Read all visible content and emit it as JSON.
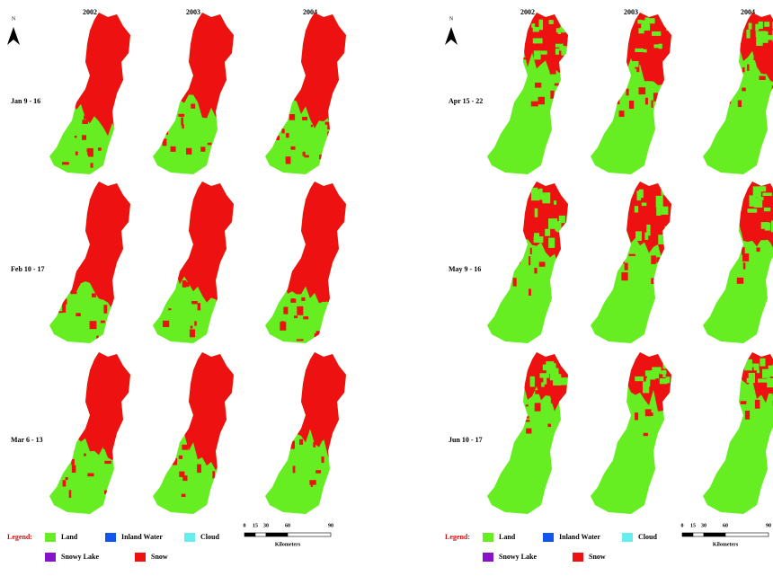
{
  "panels": [
    {
      "north": "N",
      "years": [
        "2002",
        "2003",
        "2004"
      ],
      "rows": [
        "Jan 9 - 16",
        "Feb 10 - 17",
        "Mar 6 - 13"
      ],
      "legend": {
        "title": "Legend:",
        "items": [
          "Land",
          "Inland Water",
          "Cloud",
          "Snowy Lake",
          "Snow"
        ]
      },
      "scale": {
        "ticks": [
          "0",
          "15",
          "30",
          "60",
          "90"
        ],
        "unit": "Kilometers"
      }
    },
    {
      "north": "N",
      "years": [
        "2002",
        "2003",
        "2004"
      ],
      "rows": [
        "Apr 15 - 22",
        "May 9 - 16",
        "Jun 10 - 17"
      ],
      "legend": {
        "title": "Legend:",
        "items": [
          "Land",
          "Inland Water",
          "Cloud",
          "Snowy Lake",
          "Snow"
        ]
      },
      "scale": {
        "ticks": [
          "0",
          "15",
          "30",
          "60",
          "90"
        ],
        "unit": "Kilometers"
      }
    }
  ]
}
